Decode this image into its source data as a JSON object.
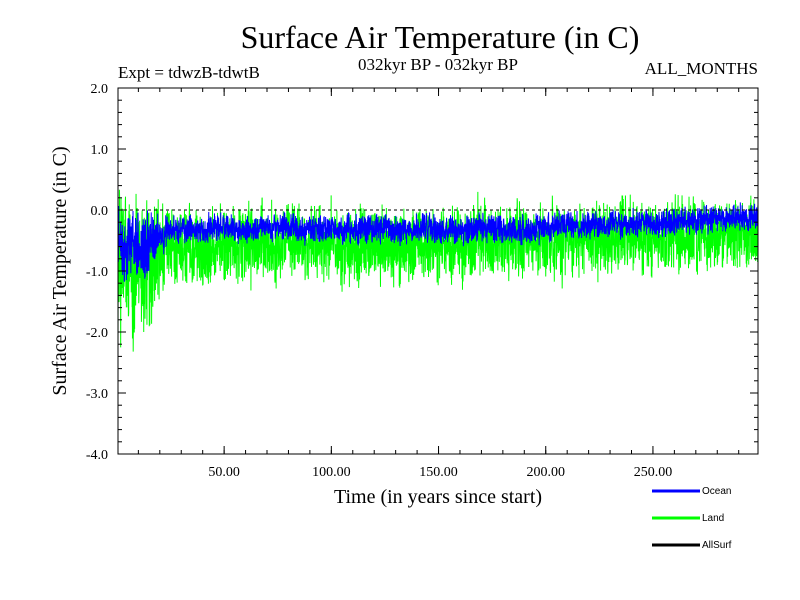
{
  "chart_data": {
    "type": "line",
    "title": "Surface Air Temperature (in C)",
    "subtitle_left": "Expt = tdwzB-tdwtB",
    "subtitle_center": "032kyr BP - 032kyr BP",
    "subtitle_right": "ALL_MONTHS",
    "xlabel": "Time (in years since start)",
    "ylabel": "Surface Air Temperature (in C)",
    "xlim": [
      0.5,
      299
    ],
    "ylim": [
      -4.0,
      2.0
    ],
    "x_ticks": [
      {
        "value": 50,
        "label": "50.00"
      },
      {
        "value": 100,
        "label": "100.00"
      },
      {
        "value": 150,
        "label": "150.00"
      },
      {
        "value": 200,
        "label": "200.00"
      },
      {
        "value": 250,
        "label": "250.00"
      }
    ],
    "y_ticks": [
      {
        "value": 2.0,
        "label": "2.0"
      },
      {
        "value": 1.0,
        "label": "1.0"
      },
      {
        "value": 0.0,
        "label": "0.0"
      },
      {
        "value": -1.0,
        "label": "-1.0"
      },
      {
        "value": -2.0,
        "label": "-2.0"
      },
      {
        "value": -3.0,
        "label": "-3.0"
      },
      {
        "value": -4.0,
        "label": "-4.0"
      }
    ],
    "reference_line": 0.0,
    "series": [
      {
        "name": "Land",
        "color": "#00ff00",
        "x": [
          0.5,
          5,
          10,
          15,
          20,
          25,
          30,
          40,
          50,
          60,
          70,
          80,
          90,
          100,
          110,
          120,
          130,
          140,
          150,
          160,
          170,
          180,
          190,
          200,
          210,
          220,
          230,
          240,
          250,
          260,
          270,
          280,
          290,
          299
        ],
        "mean": [
          -0.75,
          -0.95,
          -0.9,
          -0.85,
          -0.7,
          -0.65,
          -0.62,
          -0.6,
          -0.55,
          -0.55,
          -0.55,
          -0.5,
          -0.52,
          -0.58,
          -0.55,
          -0.56,
          -0.6,
          -0.55,
          -0.58,
          -0.6,
          -0.5,
          -0.52,
          -0.55,
          -0.5,
          -0.48,
          -0.45,
          -0.45,
          -0.42,
          -0.45,
          -0.42,
          -0.4,
          -0.35,
          -0.38,
          -0.3
        ],
        "amplitude": [
          2.0,
          2.0,
          2.0,
          1.8,
          1.2,
          1.0,
          0.95,
          0.9,
          0.9,
          0.95,
          0.95,
          0.9,
          0.9,
          0.95,
          0.95,
          0.95,
          0.95,
          0.95,
          0.95,
          0.95,
          0.95,
          0.95,
          0.95,
          0.95,
          0.9,
          0.9,
          0.9,
          0.9,
          0.9,
          0.9,
          0.9,
          0.88,
          0.85,
          0.85
        ]
      },
      {
        "name": "Ocean",
        "color": "#0000ff",
        "x": [
          0.5,
          5,
          10,
          15,
          20,
          25,
          30,
          40,
          50,
          60,
          70,
          80,
          90,
          100,
          110,
          120,
          130,
          140,
          150,
          160,
          170,
          180,
          190,
          200,
          210,
          220,
          230,
          240,
          250,
          260,
          270,
          280,
          290,
          299
        ],
        "mean": [
          -0.55,
          -0.65,
          -0.65,
          -0.6,
          -0.4,
          -0.35,
          -0.33,
          -0.32,
          -0.3,
          -0.32,
          -0.3,
          -0.28,
          -0.3,
          -0.33,
          -0.3,
          -0.32,
          -0.35,
          -0.3,
          -0.32,
          -0.35,
          -0.28,
          -0.3,
          -0.32,
          -0.28,
          -0.25,
          -0.25,
          -0.22,
          -0.2,
          -0.22,
          -0.2,
          -0.18,
          -0.15,
          -0.15,
          -0.1
        ],
        "amplitude": [
          0.9,
          0.9,
          0.9,
          0.8,
          0.45,
          0.35,
          0.33,
          0.33,
          0.33,
          0.33,
          0.33,
          0.33,
          0.33,
          0.35,
          0.35,
          0.35,
          0.38,
          0.35,
          0.35,
          0.35,
          0.35,
          0.35,
          0.35,
          0.35,
          0.33,
          0.33,
          0.33,
          0.33,
          0.33,
          0.33,
          0.33,
          0.33,
          0.33,
          0.33
        ]
      },
      {
        "name": "AllSurf",
        "color": "#000000"
      }
    ],
    "legend": {
      "placement": "bottom-right",
      "entries": [
        {
          "label": "Ocean",
          "color": "#0000ff"
        },
        {
          "label": "Land",
          "color": "#00ff00"
        },
        {
          "label": "AllSurf",
          "color": "#000000"
        }
      ]
    }
  }
}
